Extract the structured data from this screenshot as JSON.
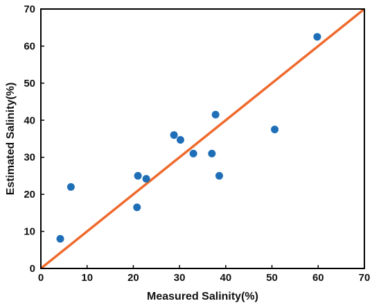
{
  "chart_data": {
    "type": "scatter",
    "xlabel": "Measured Salinity(%)",
    "ylabel": "Estimated Salinity(%)",
    "xlim": [
      0,
      70
    ],
    "ylim": [
      0,
      70
    ],
    "x_ticks": [
      "0",
      "10",
      "20",
      "30",
      "40",
      "50",
      "60",
      "70"
    ],
    "y_ticks": [
      "0",
      "10",
      "20",
      "30",
      "40",
      "50",
      "60",
      "70"
    ],
    "grid": false,
    "legend": "none",
    "series": [
      {
        "type": "scatter",
        "color": "#1f6fb8",
        "points": [
          {
            "x": 4.2,
            "y": 8.0
          },
          {
            "x": 6.5,
            "y": 22.0
          },
          {
            "x": 20.8,
            "y": 16.5
          },
          {
            "x": 21.0,
            "y": 25.0
          },
          {
            "x": 22.8,
            "y": 24.2
          },
          {
            "x": 28.8,
            "y": 36.0
          },
          {
            "x": 30.2,
            "y": 34.7
          },
          {
            "x": 33.0,
            "y": 31.0
          },
          {
            "x": 37.0,
            "y": 31.0
          },
          {
            "x": 37.8,
            "y": 41.5
          },
          {
            "x": 38.6,
            "y": 25.0
          },
          {
            "x": 50.6,
            "y": 37.5
          },
          {
            "x": 59.8,
            "y": 62.5
          }
        ]
      },
      {
        "type": "line",
        "color": "#ef6a2c",
        "points": [
          {
            "x": 0,
            "y": 0
          },
          {
            "x": 70,
            "y": 70
          }
        ]
      }
    ]
  }
}
